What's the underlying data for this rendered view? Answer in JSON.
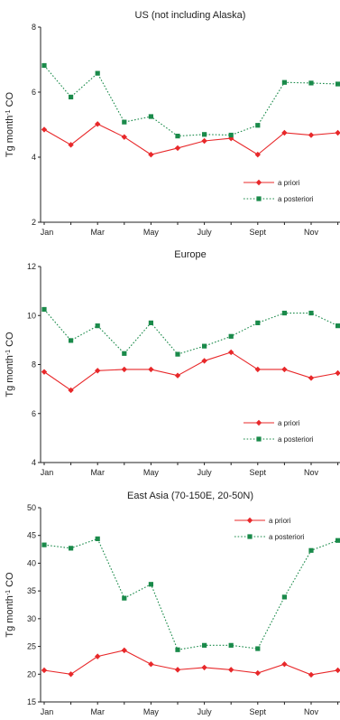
{
  "chart_data": [
    {
      "type": "line",
      "title": "US (not including Alaska)",
      "ylabel": "Tg month-1 CO",
      "ylim": [
        2,
        8
      ],
      "yticks": [
        "2",
        "4",
        "6",
        "8"
      ],
      "x_tick_labels": [
        "Jan",
        "Mar",
        "May",
        "July",
        "Sept",
        "Nov"
      ],
      "legend_position": "lower-right",
      "series": [
        {
          "name": "a priori",
          "color": "#e8282a",
          "marker": "diamond",
          "style": "solid",
          "values": [
            4.85,
            4.38,
            5.02,
            4.62,
            4.08,
            4.28,
            4.5,
            4.58,
            4.08,
            4.75,
            4.68,
            4.75
          ]
        },
        {
          "name": "a posteriori",
          "color": "#1a8a4a",
          "marker": "square",
          "style": "dotted",
          "values": [
            6.82,
            5.85,
            6.58,
            5.08,
            5.25,
            4.65,
            4.7,
            4.68,
            4.98,
            6.3,
            6.28,
            6.25
          ]
        }
      ]
    },
    {
      "type": "line",
      "title": "Europe",
      "ylabel": "Tg month-1 CO",
      "ylim": [
        4,
        12
      ],
      "yticks": [
        "4",
        "6",
        "8",
        "10",
        "12"
      ],
      "x_tick_labels": [
        "Jan",
        "Mar",
        "May",
        "July",
        "Sept",
        "Nov"
      ],
      "legend_position": "lower-right",
      "series": [
        {
          "name": "a priori",
          "color": "#e8282a",
          "marker": "diamond",
          "style": "solid",
          "values": [
            7.7,
            6.95,
            7.75,
            7.8,
            7.8,
            7.55,
            8.15,
            8.5,
            7.8,
            7.8,
            7.45,
            7.65
          ]
        },
        {
          "name": "a posteriori",
          "color": "#1a8a4a",
          "marker": "square",
          "style": "dotted",
          "values": [
            10.25,
            8.98,
            9.58,
            8.45,
            9.7,
            8.42,
            8.75,
            9.15,
            9.7,
            10.1,
            10.1,
            9.58
          ]
        }
      ]
    },
    {
      "type": "line",
      "title": "East Asia (70-150E, 20-50N)",
      "ylabel": "Tg month-1 CO",
      "ylim": [
        15,
        50
      ],
      "yticks": [
        "15",
        "20",
        "25",
        "30",
        "35",
        "40",
        "45",
        "50"
      ],
      "x_tick_labels": [
        "Jan",
        "Mar",
        "May",
        "July",
        "Sept",
        "Nov"
      ],
      "legend_position": "top-right",
      "series": [
        {
          "name": "a priori",
          "color": "#e8282a",
          "marker": "diamond",
          "style": "solid",
          "values": [
            20.7,
            20.0,
            23.2,
            24.3,
            21.8,
            20.8,
            21.2,
            20.8,
            20.2,
            21.8,
            19.9,
            20.7
          ]
        },
        {
          "name": "a posteriori",
          "color": "#1a8a4a",
          "marker": "square",
          "style": "dotted",
          "values": [
            43.3,
            42.7,
            44.4,
            33.7,
            36.2,
            24.4,
            25.2,
            25.2,
            24.6,
            33.9,
            42.3,
            44.1
          ]
        }
      ]
    }
  ]
}
